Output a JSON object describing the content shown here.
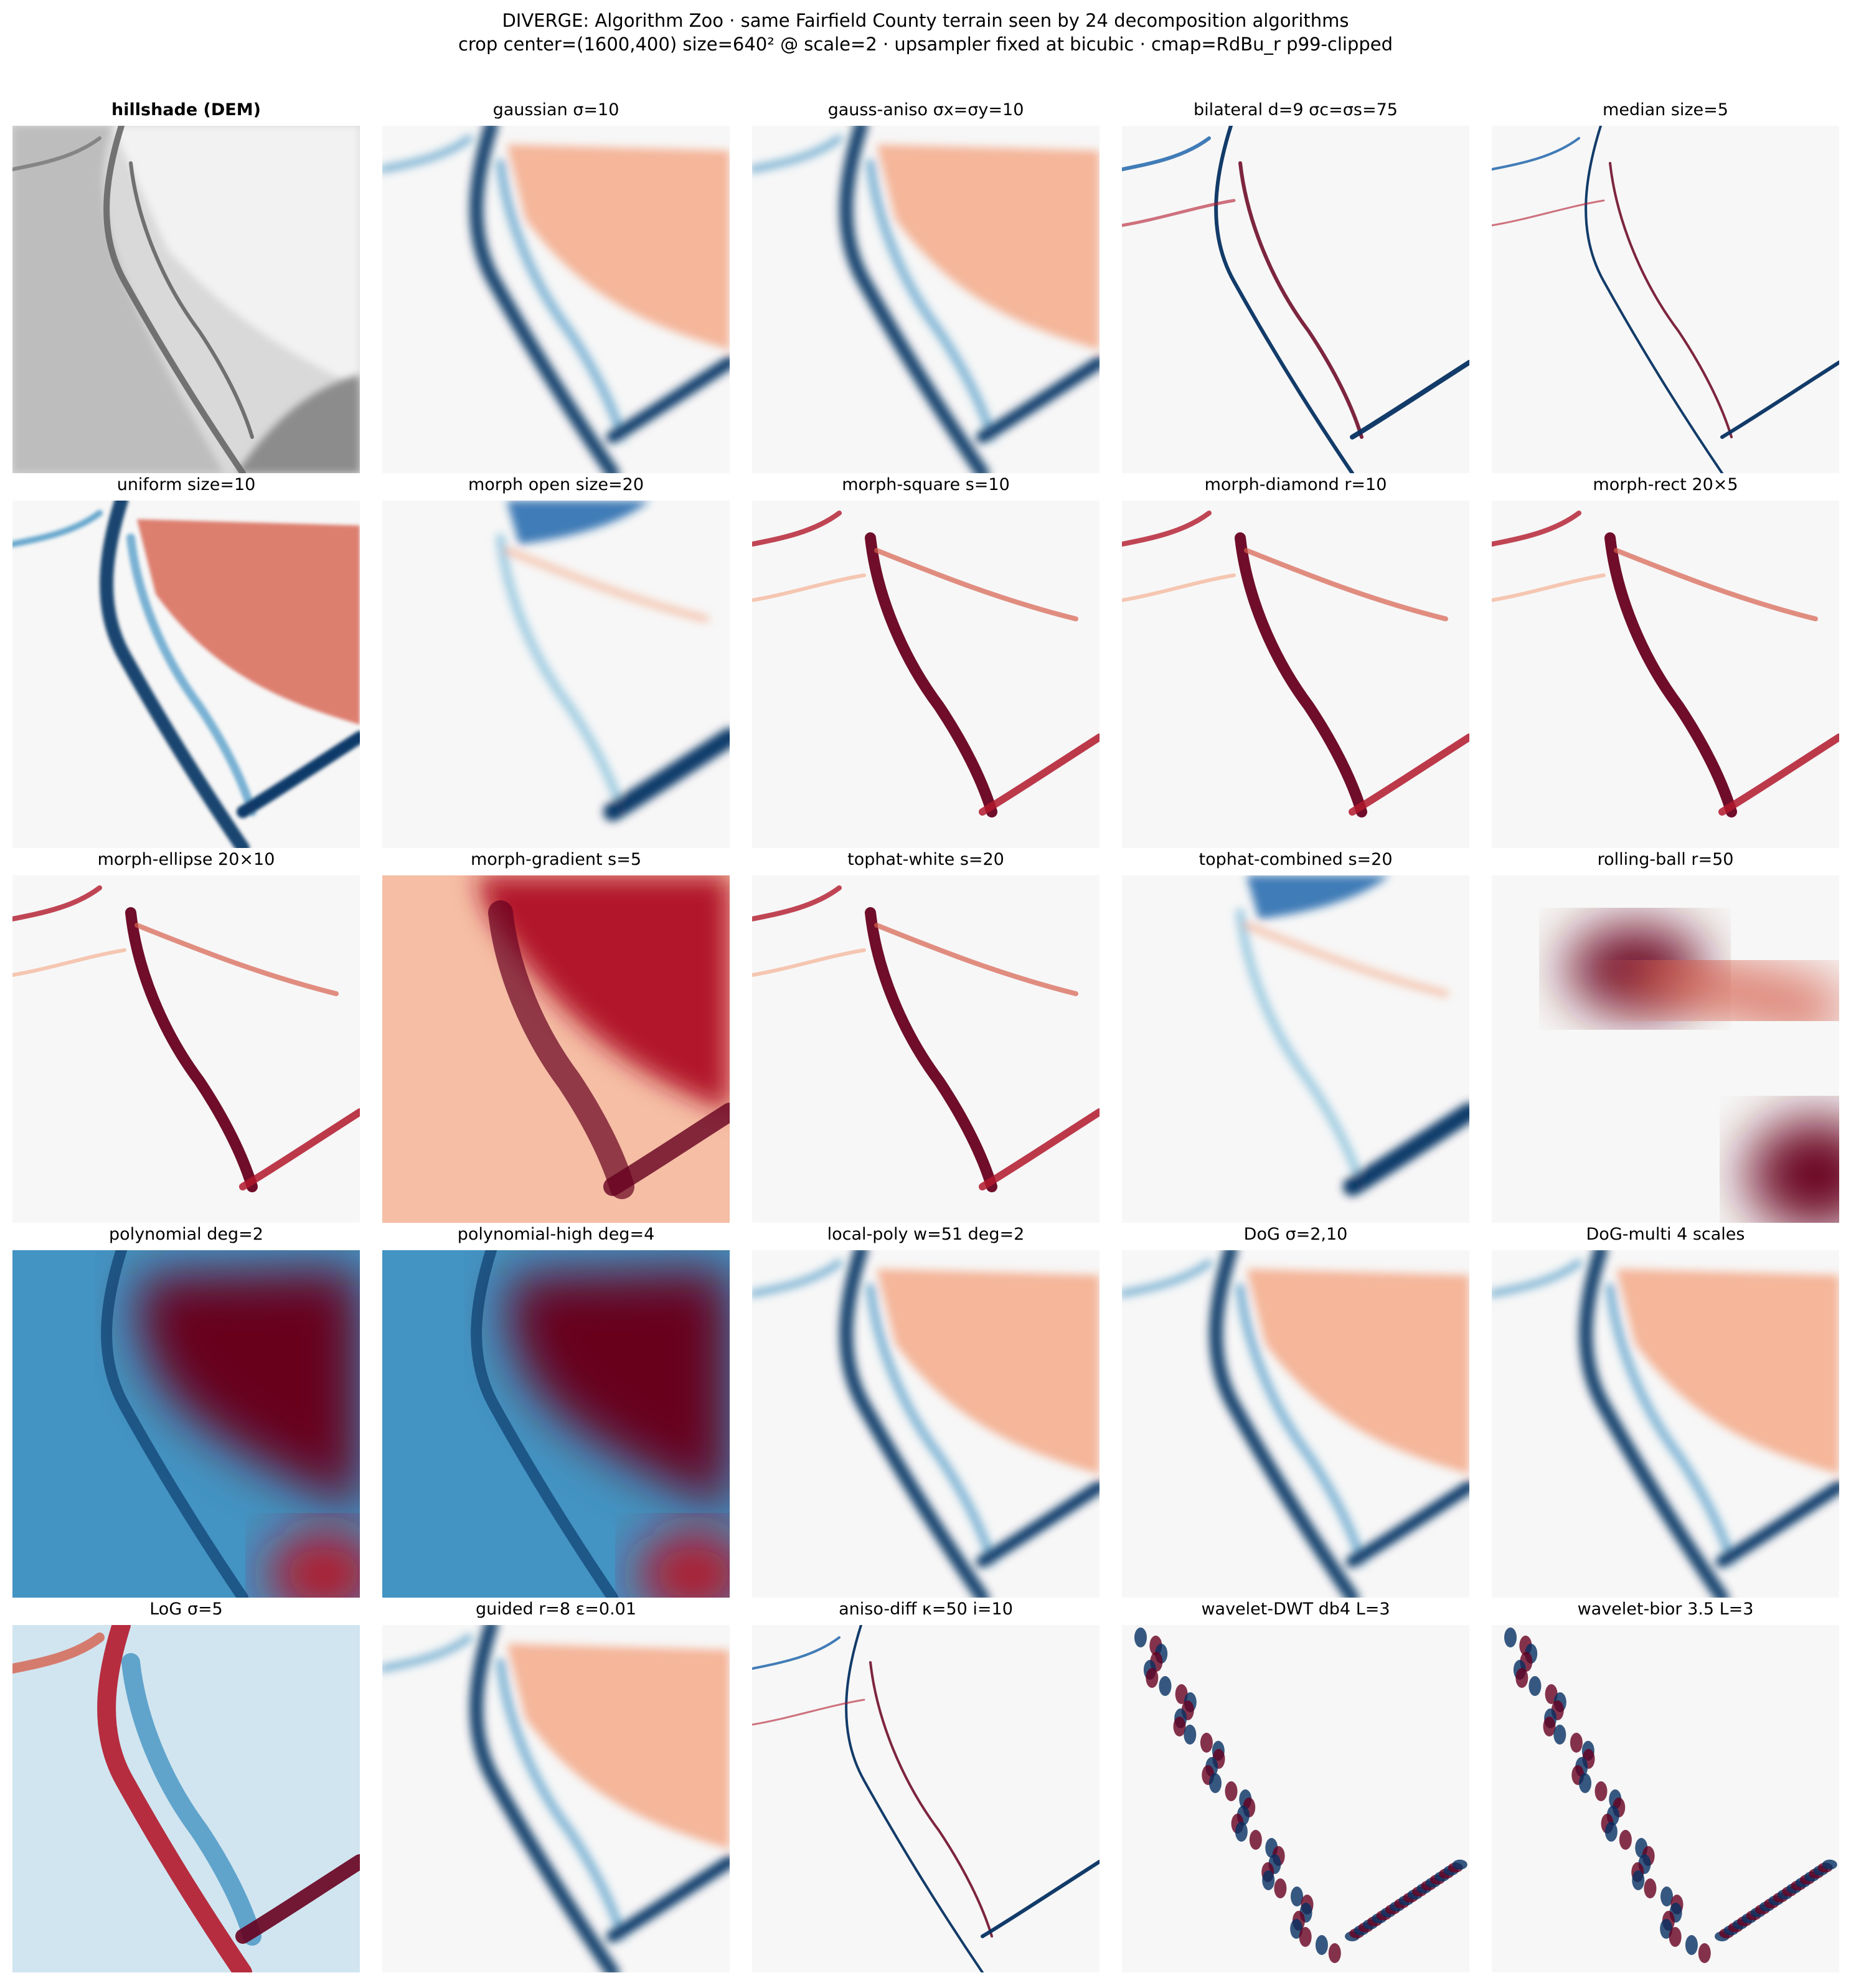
{
  "figure": {
    "title_line1": "DIVERGE: Algorithm Zoo  ·  same Fairfield County terrain seen by 24 decomposition algorithms",
    "title_line2": "crop center=(1600,400) size=640² @ scale=2  ·  upsampler fixed at bicubic ·  cmap=RdBu_r p99-clipped"
  },
  "colors": {
    "red": "#b2182b",
    "dark_red": "#67001f",
    "blue": "#2166ac",
    "dark_blue": "#053061",
    "neutral": "#f7f7f7"
  },
  "panels": [
    {
      "label": "hillshade (DEM)",
      "style": "hillshade"
    },
    {
      "label": "gaussian σ=10",
      "style": "smooth"
    },
    {
      "label": "gauss-aniso σx=σy=10",
      "style": "smooth"
    },
    {
      "label": "bilateral d=9 σc=σs=75",
      "style": "edges"
    },
    {
      "label": "median size=5",
      "style": "edges-fine"
    },
    {
      "label": "uniform size=10",
      "style": "uniform"
    },
    {
      "label": "morph open size=20",
      "style": "open"
    },
    {
      "label": "morph-square s=10",
      "style": "morph"
    },
    {
      "label": "morph-diamond r=10",
      "style": "morph"
    },
    {
      "label": "morph-rect 20×5",
      "style": "morph"
    },
    {
      "label": "morph-ellipse 20×10",
      "style": "morph"
    },
    {
      "label": "morph-gradient s=5",
      "style": "gradient"
    },
    {
      "label": "tophat-white s=20",
      "style": "morph"
    },
    {
      "label": "tophat-combined s=20",
      "style": "open"
    },
    {
      "label": "rolling-ball r=50",
      "style": "ball"
    },
    {
      "label": "polynomial deg=2",
      "style": "poly"
    },
    {
      "label": "polynomial-high deg=4",
      "style": "poly"
    },
    {
      "label": "local-poly w=51 deg=2",
      "style": "smooth"
    },
    {
      "label": "DoG σ=2,10",
      "style": "smooth"
    },
    {
      "label": "DoG-multi 4 scales",
      "style": "smooth"
    },
    {
      "label": "LoG σ=5",
      "style": "log"
    },
    {
      "label": "guided r=8 ε=0.01",
      "style": "smooth"
    },
    {
      "label": "aniso-diff κ=50 i=10",
      "style": "edges-fine"
    },
    {
      "label": "wavelet-DWT db4 L=3",
      "style": "wavelet"
    },
    {
      "label": "wavelet-bior 3.5 L=3",
      "style": "wavelet"
    }
  ]
}
